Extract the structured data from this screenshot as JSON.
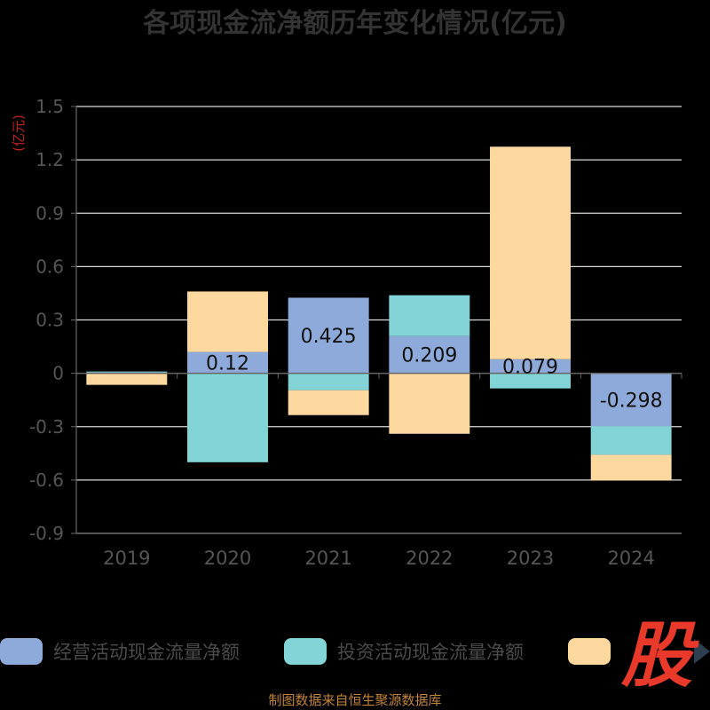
{
  "chart_data": {
    "type": "bar",
    "stacked": true,
    "title": "各项现金流净额历年变化情况(亿元)",
    "ylabel": "(亿元)",
    "xlabel": "",
    "categories": [
      "2019",
      "2020",
      "2021",
      "2022",
      "2023",
      "2024"
    ],
    "ylim": [
      -0.9,
      1.5
    ],
    "yticks": [
      1.5,
      1.2,
      0.9,
      0.6,
      0.3,
      0,
      -0.3,
      -0.6,
      -0.9
    ],
    "grid": true,
    "legend_position": "bottom",
    "series": [
      {
        "name": "经营活动现金流量净额",
        "color": "#8eaadb",
        "values": [
          0.005,
          0.12,
          0.425,
          0.209,
          0.079,
          -0.298
        ],
        "labels": [
          "",
          "0.12",
          "0.425",
          "0.209",
          "0.079",
          "-0.298"
        ]
      },
      {
        "name": "投资活动现金流量净额",
        "color": "#82d4d6",
        "values": [
          0.005,
          -0.5,
          -0.095,
          0.23,
          -0.085,
          -0.16
        ]
      },
      {
        "name": "",
        "color": "#fdd9a0",
        "values": [
          -0.065,
          0.34,
          -0.14,
          -0.34,
          1.195,
          -0.145
        ]
      }
    ]
  },
  "footer": "制图数据来自恒生聚源数据库",
  "logo_text": "股"
}
